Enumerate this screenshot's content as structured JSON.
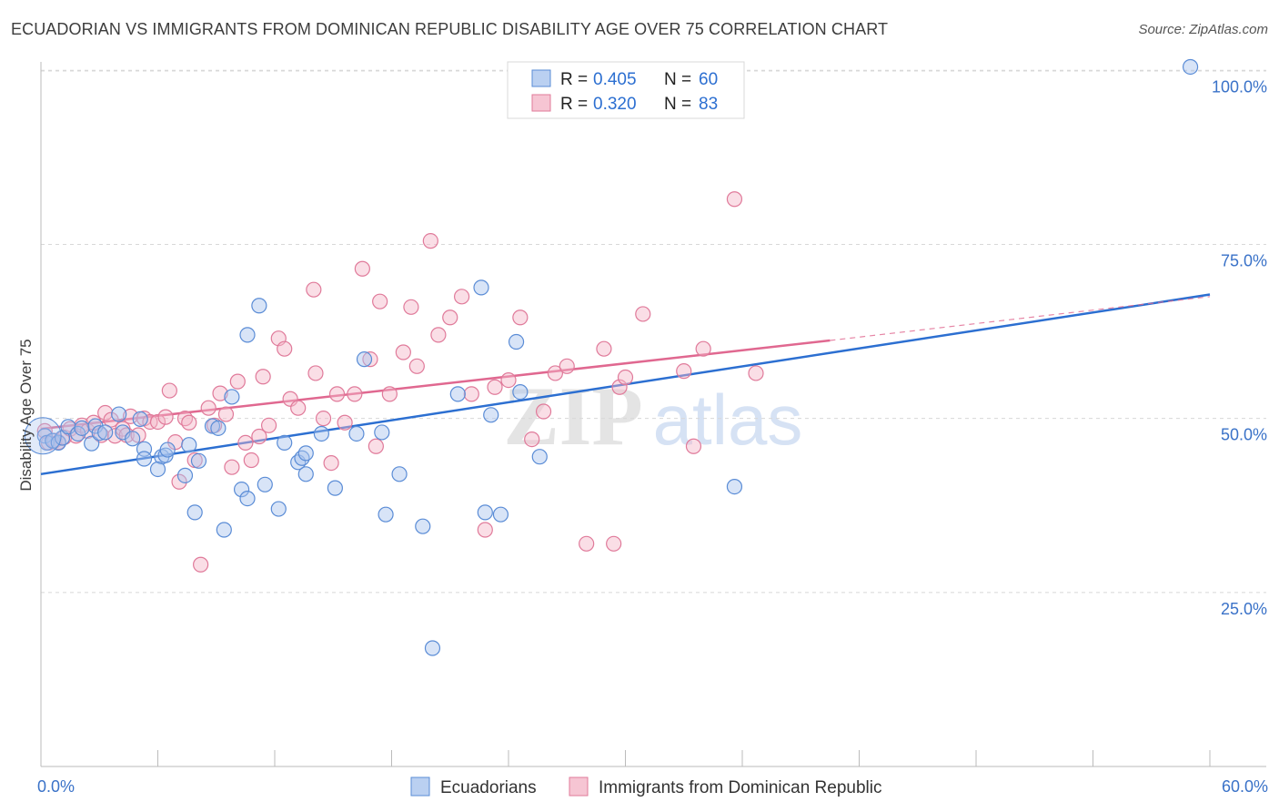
{
  "title": "ECUADORIAN VS IMMIGRANTS FROM DOMINICAN REPUBLIC DISABILITY AGE OVER 75 CORRELATION CHART",
  "source": "Source: ZipAtlas.com",
  "watermark": {
    "zip": "ZIP",
    "atlas": "atlas"
  },
  "colors": {
    "blue_fill": "#a9c4ee",
    "blue_stroke": "#5a8cd6",
    "blue_line": "#2c6fd1",
    "pink_fill": "#f4b6c8",
    "pink_stroke": "#e07a9a",
    "pink_line": "#e06890",
    "axis_label": "#3a72c8",
    "grid": "#d8d8d8"
  },
  "chart_data": {
    "type": "scatter",
    "title": "ECUADORIAN VS IMMIGRANTS FROM DOMINICAN REPUBLIC DISABILITY AGE OVER 75 CORRELATION CHART",
    "xlabel": "",
    "ylabel": "Disability Age Over 75",
    "xlim": [
      0,
      60
    ],
    "ylim": [
      0,
      102
    ],
    "x_tick_labels": [
      {
        "value": 0,
        "label": "0.0%"
      },
      {
        "value": 60,
        "label": "60.0%"
      }
    ],
    "y_tick_labels": [
      {
        "value": 25,
        "label": "25.0%"
      },
      {
        "value": 50,
        "label": "50.0%"
      },
      {
        "value": 75,
        "label": "75.0%"
      },
      {
        "value": 100,
        "label": "100.0%"
      }
    ],
    "grid": true,
    "legend_position": "top-center",
    "stats": [
      {
        "series": "Ecuadorians",
        "r_label": "R =",
        "r": "0.405",
        "n_label": "N =",
        "n": "60"
      },
      {
        "series": "Immigrants from Dominican Republic",
        "r_label": "R =",
        "r": "0.320",
        "n_label": "N =",
        "n": "83"
      }
    ],
    "series": [
      {
        "name": "Ecuadorians",
        "color": "blue",
        "trend": {
          "x0": 0,
          "y0": 42,
          "x1": 60,
          "y1": 67.8
        },
        "points": [
          [
            0.2,
            47.5
          ],
          [
            0.3,
            46.5
          ],
          [
            0.6,
            46.8
          ],
          [
            0.9,
            46.5
          ],
          [
            1.1,
            47.2
          ],
          [
            1.4,
            48.8
          ],
          [
            1.9,
            47.8
          ],
          [
            2.1,
            48.6
          ],
          [
            2.6,
            46.4
          ],
          [
            2.8,
            48.9
          ],
          [
            3.0,
            47.9
          ],
          [
            3.3,
            48.0
          ],
          [
            4.0,
            50.6
          ],
          [
            4.2,
            48.0
          ],
          [
            4.7,
            47.1
          ],
          [
            5.3,
            45.6
          ],
          [
            5.1,
            49.9
          ],
          [
            6.2,
            44.5
          ],
          [
            6.4,
            44.7
          ],
          [
            5.3,
            44.2
          ],
          [
            6.0,
            42.7
          ],
          [
            6.5,
            45.5
          ],
          [
            7.4,
            41.8
          ],
          [
            8.1,
            43.9
          ],
          [
            7.6,
            46.2
          ],
          [
            7.9,
            36.5
          ],
          [
            8.8,
            48.9
          ],
          [
            9.1,
            48.6
          ],
          [
            9.4,
            34.0
          ],
          [
            9.8,
            53.1
          ],
          [
            10.3,
            39.8
          ],
          [
            10.6,
            38.5
          ],
          [
            10.6,
            62.0
          ],
          [
            11.2,
            66.2
          ],
          [
            11.5,
            40.5
          ],
          [
            12.2,
            37.0
          ],
          [
            12.5,
            46.5
          ],
          [
            13.2,
            43.7
          ],
          [
            13.4,
            44.3
          ],
          [
            13.6,
            42.0
          ],
          [
            13.6,
            45.0
          ],
          [
            14.4,
            47.8
          ],
          [
            15.1,
            40.0
          ],
          [
            16.2,
            47.8
          ],
          [
            16.6,
            58.5
          ],
          [
            17.5,
            48.0
          ],
          [
            17.7,
            36.2
          ],
          [
            18.4,
            42.0
          ],
          [
            19.6,
            34.5
          ],
          [
            20.1,
            17.0
          ],
          [
            21.4,
            53.5
          ],
          [
            22.6,
            68.8
          ],
          [
            22.8,
            36.5
          ],
          [
            23.1,
            50.5
          ],
          [
            23.6,
            36.2
          ],
          [
            24.4,
            61.0
          ],
          [
            24.6,
            53.8
          ],
          [
            25.6,
            44.5
          ],
          [
            35.6,
            40.2
          ],
          [
            59.0,
            100.5
          ]
        ]
      },
      {
        "name": "Immigrants from Dominican Republic",
        "color": "pink",
        "trend": {
          "x0": 0,
          "y0": 48.5,
          "x1": 40.5,
          "y1": 61.2
        },
        "trend_dashed": {
          "x0": 40.5,
          "y0": 61.2,
          "x1": 60,
          "y1": 67.5
        },
        "points": [
          [
            0.2,
            48.2
          ],
          [
            0.4,
            46.5
          ],
          [
            0.7,
            46.8
          ],
          [
            0.9,
            46.6
          ],
          [
            1.2,
            47.3
          ],
          [
            1.5,
            48.5
          ],
          [
            1.8,
            47.5
          ],
          [
            2.1,
            49.0
          ],
          [
            2.4,
            48.2
          ],
          [
            2.7,
            49.4
          ],
          [
            3.1,
            47.6
          ],
          [
            3.3,
            50.8
          ],
          [
            3.6,
            49.8
          ],
          [
            3.8,
            47.5
          ],
          [
            4.2,
            48.5
          ],
          [
            4.4,
            47.6
          ],
          [
            4.6,
            50.3
          ],
          [
            5.0,
            47.6
          ],
          [
            5.3,
            50.0
          ],
          [
            5.6,
            49.5
          ],
          [
            6.0,
            49.5
          ],
          [
            6.4,
            50.2
          ],
          [
            6.6,
            54.0
          ],
          [
            6.9,
            46.6
          ],
          [
            7.1,
            40.9
          ],
          [
            7.4,
            50.0
          ],
          [
            7.6,
            49.4
          ],
          [
            7.9,
            44.0
          ],
          [
            8.2,
            29.0
          ],
          [
            8.6,
            51.5
          ],
          [
            8.9,
            49.0
          ],
          [
            9.2,
            53.6
          ],
          [
            9.5,
            50.6
          ],
          [
            9.8,
            43.0
          ],
          [
            10.1,
            55.3
          ],
          [
            10.5,
            46.5
          ],
          [
            10.8,
            44.0
          ],
          [
            11.2,
            47.4
          ],
          [
            11.4,
            56.0
          ],
          [
            11.7,
            49.0
          ],
          [
            12.2,
            61.5
          ],
          [
            12.5,
            60.0
          ],
          [
            12.8,
            52.8
          ],
          [
            13.2,
            51.5
          ],
          [
            14.0,
            68.5
          ],
          [
            14.1,
            56.5
          ],
          [
            14.5,
            50.0
          ],
          [
            14.9,
            43.6
          ],
          [
            15.2,
            53.5
          ],
          [
            15.6,
            49.4
          ],
          [
            16.1,
            53.5
          ],
          [
            16.5,
            71.5
          ],
          [
            16.9,
            58.5
          ],
          [
            17.2,
            46.0
          ],
          [
            17.4,
            66.8
          ],
          [
            17.9,
            53.5
          ],
          [
            18.6,
            59.5
          ],
          [
            19.0,
            66.0
          ],
          [
            19.3,
            57.5
          ],
          [
            20.0,
            75.5
          ],
          [
            20.4,
            62.0
          ],
          [
            21.0,
            64.5
          ],
          [
            21.6,
            67.5
          ],
          [
            22.1,
            53.5
          ],
          [
            22.8,
            34.0
          ],
          [
            23.3,
            54.5
          ],
          [
            24.0,
            55.5
          ],
          [
            24.6,
            64.5
          ],
          [
            25.2,
            47.0
          ],
          [
            25.8,
            51.0
          ],
          [
            26.4,
            56.5
          ],
          [
            27.0,
            57.5
          ],
          [
            28.0,
            32.0
          ],
          [
            28.9,
            60.0
          ],
          [
            29.4,
            32.0
          ],
          [
            29.7,
            54.5
          ],
          [
            30.0,
            55.9
          ],
          [
            30.9,
            65.0
          ],
          [
            33.0,
            56.8
          ],
          [
            33.5,
            46.0
          ],
          [
            34.0,
            60.0
          ],
          [
            35.6,
            81.5
          ],
          [
            36.7,
            56.5
          ]
        ]
      }
    ]
  },
  "legend_bottom": {
    "items": [
      "Ecuadorians",
      "Immigrants from Dominican Republic"
    ]
  }
}
